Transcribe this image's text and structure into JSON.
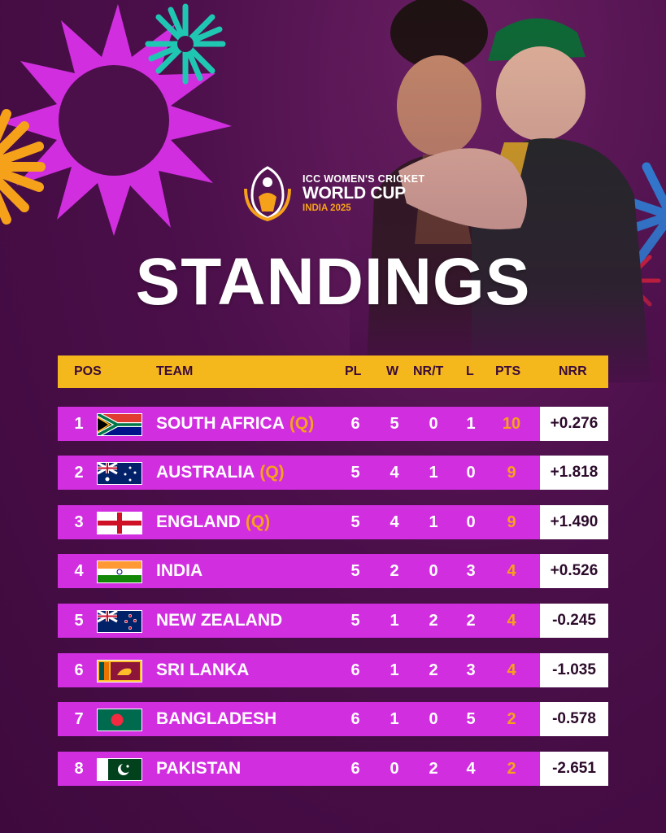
{
  "logo": {
    "line1": "ICC WOMEN'S CRICKET",
    "line2": "WORLD CUP",
    "line3": "INDIA 2025"
  },
  "title": "STANDINGS",
  "colors": {
    "header": "#f4b81c",
    "row": "#d12ee0",
    "accent": "#f6a11a",
    "background": "#4b0f4a"
  },
  "table": {
    "headers": {
      "pos": "POS",
      "team": "TEAM",
      "pl": "PL",
      "w": "W",
      "nr": "NR/T",
      "l": "L",
      "pts": "PTS",
      "nrr": "NRR"
    },
    "rows": [
      {
        "pos": "1",
        "flag": "south-africa-flag",
        "team": "SOUTH AFRICA",
        "q": "(Q)",
        "pl": "6",
        "w": "5",
        "nr": "0",
        "l": "1",
        "pts": "10",
        "nrr": "+0.276"
      },
      {
        "pos": "2",
        "flag": "australia-flag",
        "team": "AUSTRALIA",
        "q": "(Q)",
        "pl": "5",
        "w": "4",
        "nr": "1",
        "l": "0",
        "pts": "9",
        "nrr": "+1.818"
      },
      {
        "pos": "3",
        "flag": "england-flag",
        "team": "ENGLAND",
        "q": "(Q)",
        "pl": "5",
        "w": "4",
        "nr": "1",
        "l": "0",
        "pts": "9",
        "nrr": "+1.490"
      },
      {
        "pos": "4",
        "flag": "india-flag",
        "team": "INDIA",
        "q": "",
        "pl": "5",
        "w": "2",
        "nr": "0",
        "l": "3",
        "pts": "4",
        "nrr": "+0.526"
      },
      {
        "pos": "5",
        "flag": "new-zealand-flag",
        "team": "NEW ZEALAND",
        "q": "",
        "pl": "5",
        "w": "1",
        "nr": "2",
        "l": "2",
        "pts": "4",
        "nrr": "-0.245"
      },
      {
        "pos": "6",
        "flag": "sri-lanka-flag",
        "team": "SRI LANKA",
        "q": "",
        "pl": "6",
        "w": "1",
        "nr": "2",
        "l": "3",
        "pts": "4",
        "nrr": "-1.035"
      },
      {
        "pos": "7",
        "flag": "bangladesh-flag",
        "team": "BANGLADESH",
        "q": "",
        "pl": "6",
        "w": "1",
        "nr": "0",
        "l": "5",
        "pts": "2",
        "nrr": "-0.578"
      },
      {
        "pos": "8",
        "flag": "pakistan-flag",
        "team": "PAKISTAN",
        "q": "",
        "pl": "6",
        "w": "0",
        "nr": "2",
        "l": "4",
        "pts": "2",
        "nrr": "-2.651"
      }
    ]
  }
}
